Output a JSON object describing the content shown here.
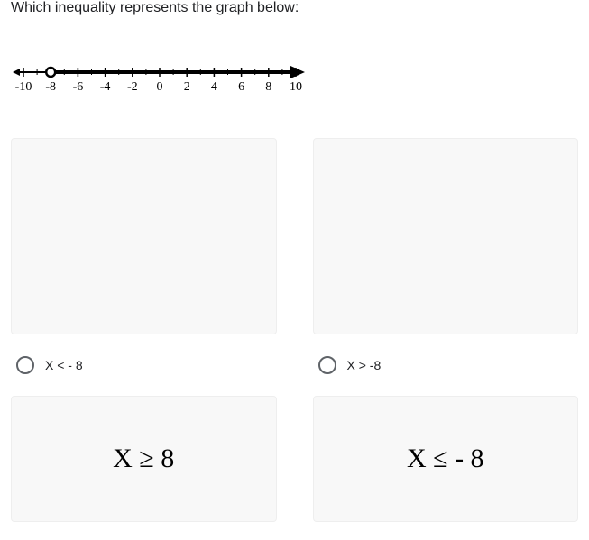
{
  "question": "Which inequality represents the graph below:",
  "numberline": {
    "min": -10,
    "max": 10,
    "labels": [
      -10,
      -8,
      -6,
      -4,
      -2,
      0,
      2,
      4,
      6,
      8,
      10
    ],
    "open_circle_at": -8,
    "ray_direction": "right",
    "arrow_left": true,
    "arrow_right": true,
    "line_color": "#000000",
    "tick_color": "#000000",
    "label_fontsize": 14,
    "label_font": "Times New Roman"
  },
  "options": {
    "a": {
      "label": "X < - 8"
    },
    "b": {
      "label": "X > -8"
    },
    "c": {
      "expression": "X ≥ 8"
    },
    "d": {
      "expression": "X ≤ - 8"
    }
  },
  "colors": {
    "card_bg": "#f8f8f8",
    "card_border": "#eeeeee",
    "radio_border": "#5f6368",
    "text": "#202124",
    "background": "#ffffff"
  }
}
